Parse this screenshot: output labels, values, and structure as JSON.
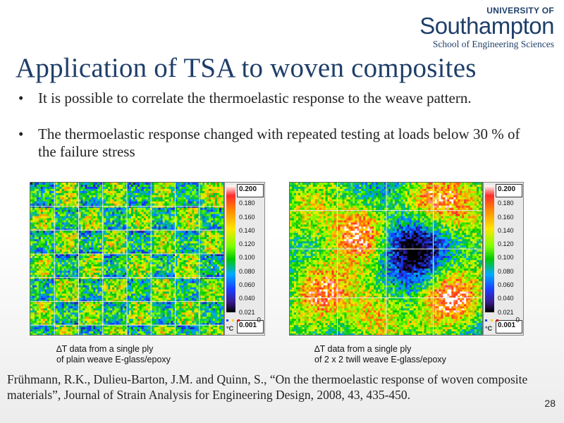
{
  "logo": {
    "line1": "UNIVERSITY OF",
    "line2": "Southampton",
    "line3": "School of Engineering Sciences"
  },
  "title": "Application of TSA to woven composites",
  "bullets": [
    {
      "marker": "•",
      "text": "It is possible to correlate the thermoelastic response to the weave pattern."
    },
    {
      "marker": "•",
      "text": "The thermoelastic response changed with repeated testing at loads below 30 % of the failure stress"
    }
  ],
  "colorbar": {
    "ticks": [
      "0.200",
      "0.180",
      "0.160",
      "0.140",
      "0.120",
      "0.100",
      "0.080",
      "0.060",
      "0.040",
      "0.021",
      "0.001"
    ],
    "zero": "0",
    "unit": "°C"
  },
  "figures": [
    {
      "caption_line1": "∆T data from a single ply",
      "caption_line2": "of plain weave E-glass/epoxy"
    },
    {
      "caption_line1": "∆T data from a single ply",
      "caption_line2": "of 2 x 2 twill weave E-glass/epoxy"
    }
  ],
  "reference": "Frühmann, R.K., Dulieu-Barton, J.M. and Quinn, S., “On the thermoelastic response of woven composite materials”, Journal of Strain Analysis for Engineering Design, 2008, 43, 435-450.",
  "page_number": "28"
}
